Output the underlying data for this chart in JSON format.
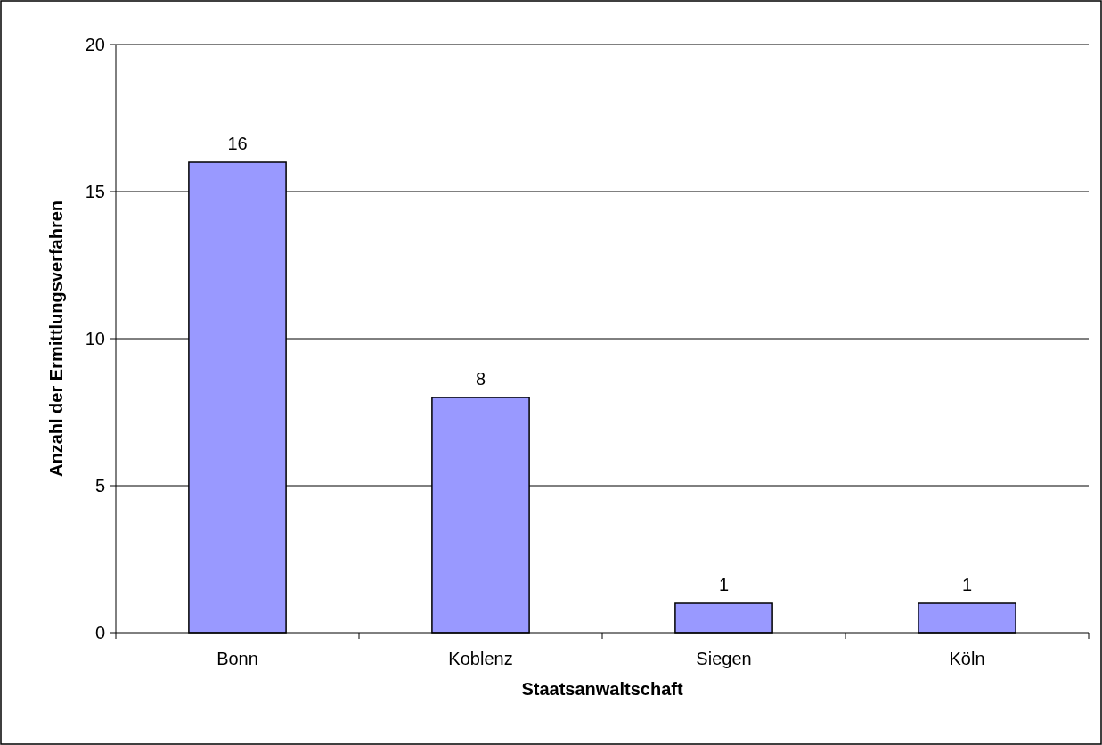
{
  "chart_data": {
    "type": "bar",
    "xlabel": "Staatsanwaltschaft",
    "ylabel": "Anzahl der Ermittlungsverfahren",
    "categories": [
      "Bonn",
      "Koblenz",
      "Siegen",
      "Köln"
    ],
    "values": [
      16,
      8,
      1,
      1
    ],
    "color": "#9999ff",
    "ylim": [
      0,
      20
    ],
    "yticks": [
      0,
      5,
      10,
      15,
      20
    ],
    "grid": "y",
    "data_labels": true
  }
}
